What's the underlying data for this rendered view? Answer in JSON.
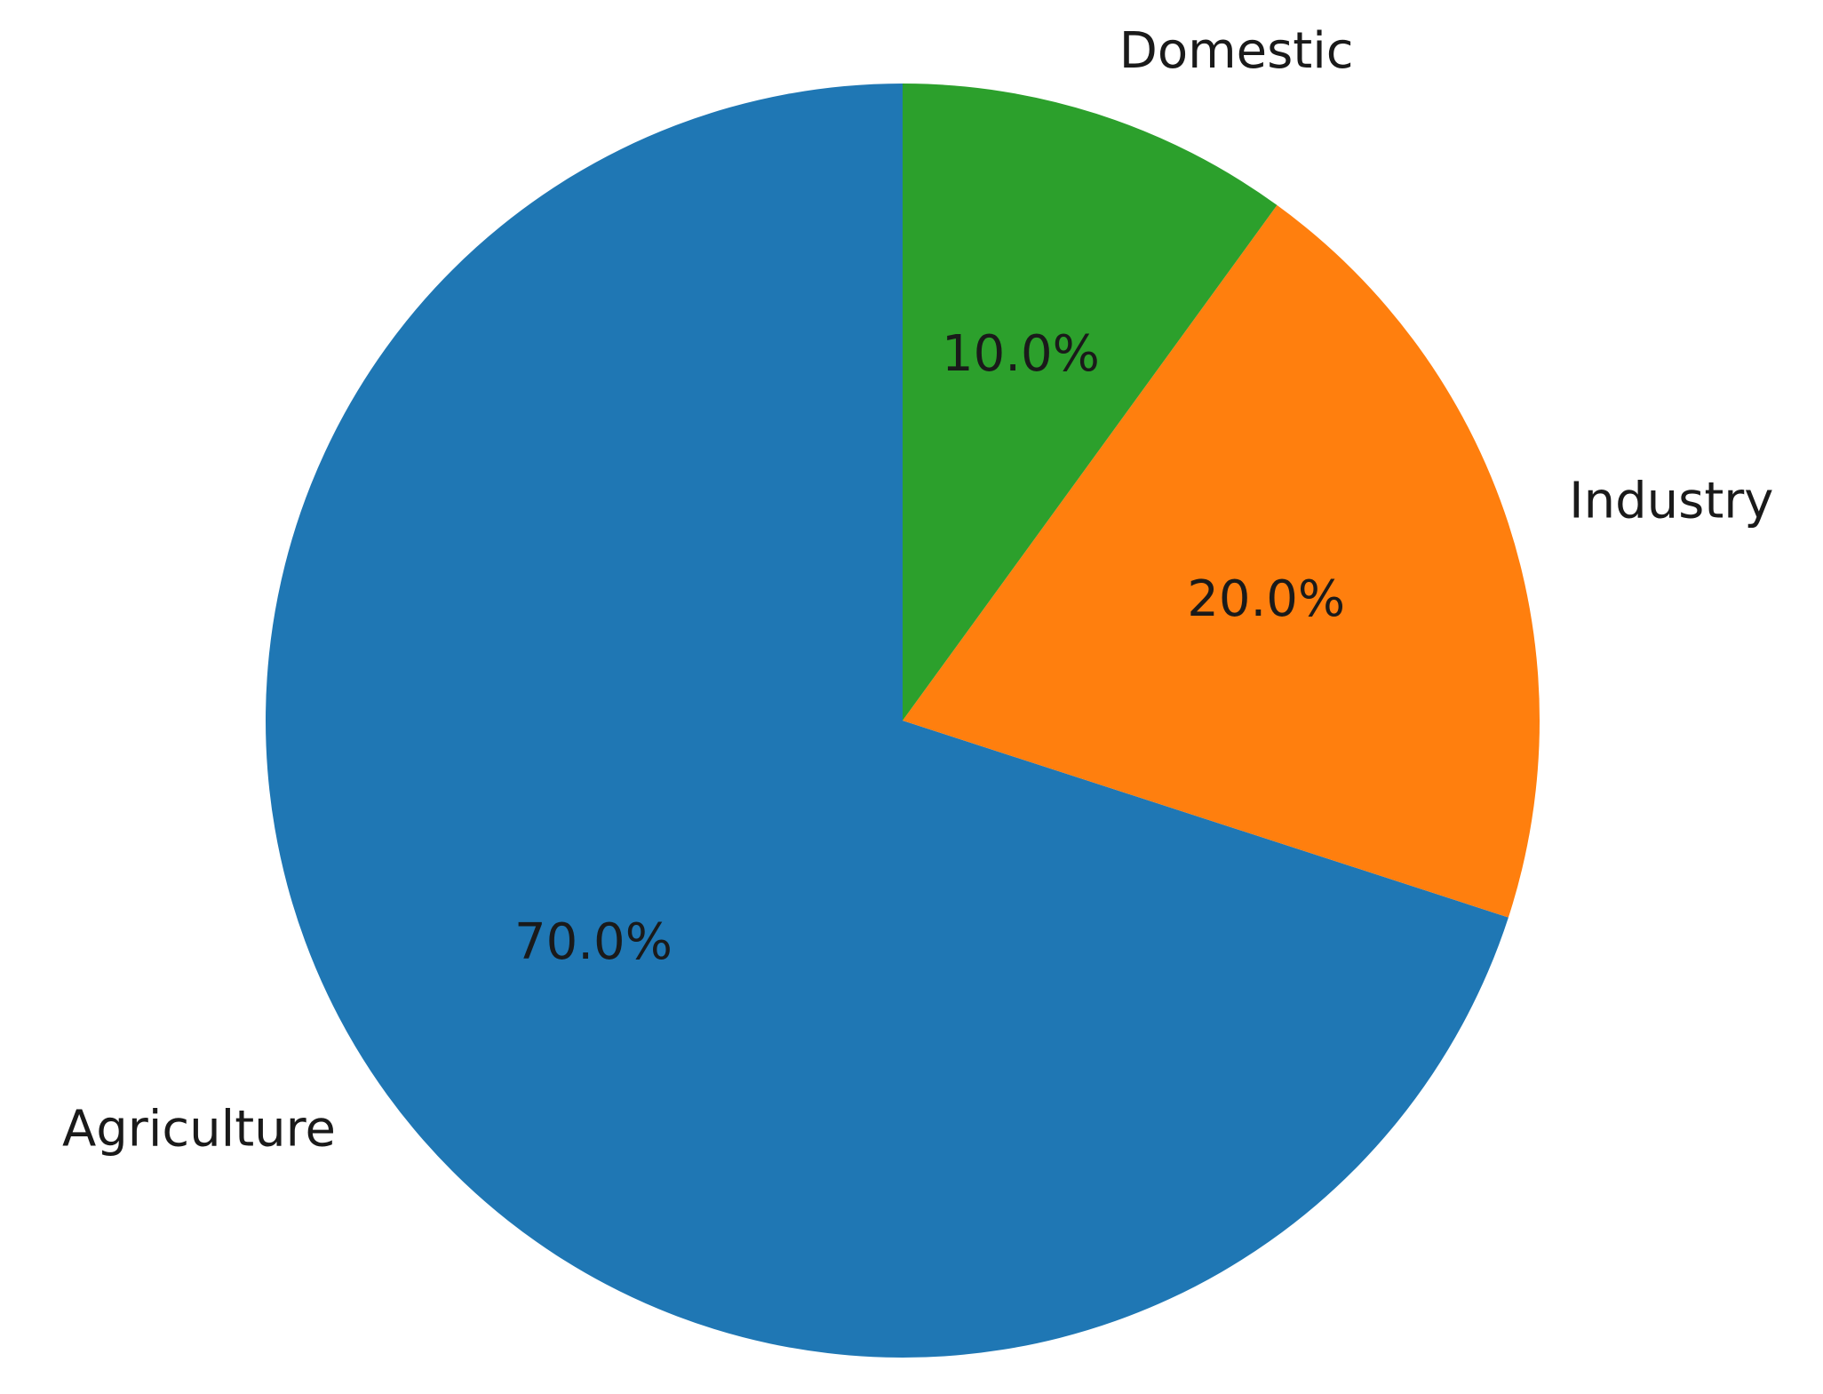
{
  "chart_data": {
    "type": "pie",
    "categories": [
      "Agriculture",
      "Industry",
      "Domestic"
    ],
    "values": [
      70,
      20,
      10
    ],
    "value_labels": [
      "70.0%",
      "20.0%",
      "10.0%"
    ],
    "colors": [
      "#1f77b4",
      "#ff7f0e",
      "#2ca02c"
    ]
  }
}
